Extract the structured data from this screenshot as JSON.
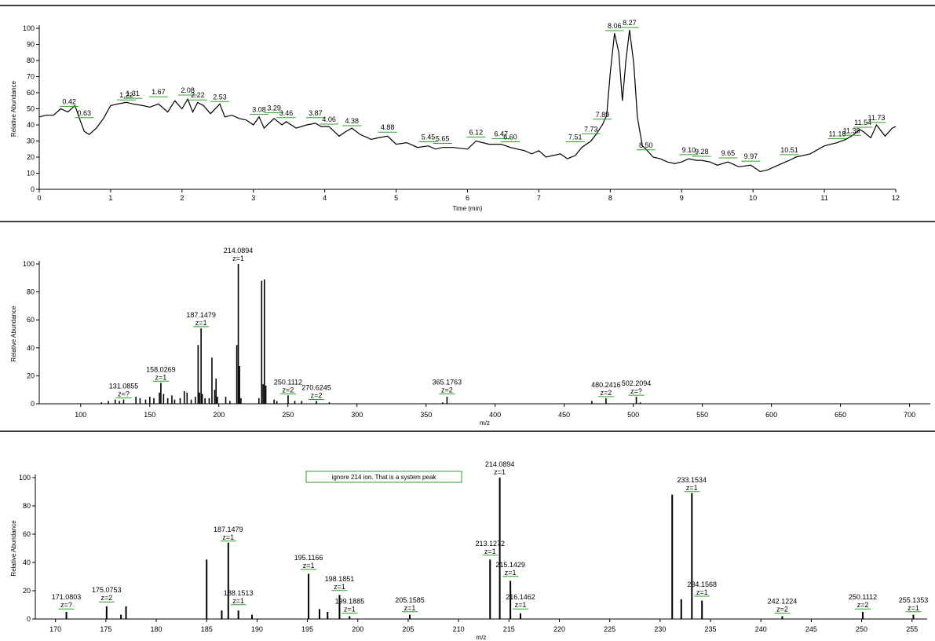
{
  "chart_data": [
    {
      "type": "line",
      "ylabel": "Relative Abundance",
      "xlabel": "Time (min)",
      "xlim": [
        0,
        12
      ],
      "ylim": [
        0,
        100
      ],
      "xticks": [
        0,
        1,
        2,
        3,
        4,
        5,
        6,
        7,
        8,
        9,
        10,
        11,
        12
      ],
      "yticks": [
        0,
        10,
        20,
        30,
        40,
        50,
        60,
        70,
        80,
        90,
        100
      ],
      "trace": [
        [
          0,
          45
        ],
        [
          0.1,
          46
        ],
        [
          0.2,
          46
        ],
        [
          0.3,
          50
        ],
        [
          0.4,
          48
        ],
        [
          0.5,
          52
        ],
        [
          0.58,
          42
        ],
        [
          0.63,
          36
        ],
        [
          0.7,
          34
        ],
        [
          0.8,
          38
        ],
        [
          0.9,
          44
        ],
        [
          1.0,
          52
        ],
        [
          1.1,
          53
        ],
        [
          1.22,
          54
        ],
        [
          1.31,
          53
        ],
        [
          1.45,
          52
        ],
        [
          1.55,
          51
        ],
        [
          1.67,
          53
        ],
        [
          1.8,
          48
        ],
        [
          1.9,
          55
        ],
        [
          2.0,
          50
        ],
        [
          2.08,
          56
        ],
        [
          2.15,
          48
        ],
        [
          2.22,
          54
        ],
        [
          2.3,
          52
        ],
        [
          2.4,
          47
        ],
        [
          2.53,
          53
        ],
        [
          2.6,
          45
        ],
        [
          2.7,
          46
        ],
        [
          2.8,
          44
        ],
        [
          2.9,
          43
        ],
        [
          3.0,
          40
        ],
        [
          3.08,
          45
        ],
        [
          3.15,
          38
        ],
        [
          3.29,
          44
        ],
        [
          3.4,
          40
        ],
        [
          3.46,
          42
        ],
        [
          3.6,
          38
        ],
        [
          3.75,
          40
        ],
        [
          3.87,
          41
        ],
        [
          3.95,
          39
        ],
        [
          4.06,
          39
        ],
        [
          4.2,
          33
        ],
        [
          4.3,
          36
        ],
        [
          4.38,
          38
        ],
        [
          4.5,
          34
        ],
        [
          4.65,
          31
        ],
        [
          4.75,
          32
        ],
        [
          4.88,
          33
        ],
        [
          5.0,
          28
        ],
        [
          5.15,
          29
        ],
        [
          5.3,
          26
        ],
        [
          5.45,
          27
        ],
        [
          5.55,
          25
        ],
        [
          5.65,
          26
        ],
        [
          5.8,
          26
        ],
        [
          6.0,
          25
        ],
        [
          6.12,
          30
        ],
        [
          6.3,
          28
        ],
        [
          6.47,
          28
        ],
        [
          6.6,
          26
        ],
        [
          6.8,
          24
        ],
        [
          6.9,
          22
        ],
        [
          7.0,
          24
        ],
        [
          7.1,
          20
        ],
        [
          7.3,
          22
        ],
        [
          7.4,
          19
        ],
        [
          7.51,
          21
        ],
        [
          7.6,
          26
        ],
        [
          7.73,
          30
        ],
        [
          7.8,
          34
        ],
        [
          7.89,
          40
        ],
        [
          7.95,
          46
        ],
        [
          8.0,
          72
        ],
        [
          8.06,
          97
        ],
        [
          8.12,
          85
        ],
        [
          8.17,
          55
        ],
        [
          8.22,
          80
        ],
        [
          8.27,
          99
        ],
        [
          8.33,
          78
        ],
        [
          8.38,
          45
        ],
        [
          8.45,
          27
        ],
        [
          8.5,
          25
        ],
        [
          8.6,
          20
        ],
        [
          8.7,
          19
        ],
        [
          8.8,
          17
        ],
        [
          8.9,
          16
        ],
        [
          9.0,
          17
        ],
        [
          9.1,
          19
        ],
        [
          9.2,
          18
        ],
        [
          9.28,
          18
        ],
        [
          9.4,
          17
        ],
        [
          9.5,
          15
        ],
        [
          9.65,
          17
        ],
        [
          9.8,
          14
        ],
        [
          9.97,
          15
        ],
        [
          10.1,
          11
        ],
        [
          10.2,
          12
        ],
        [
          10.35,
          15
        ],
        [
          10.51,
          18
        ],
        [
          10.6,
          20
        ],
        [
          10.8,
          22
        ],
        [
          11.0,
          27
        ],
        [
          11.18,
          29
        ],
        [
          11.3,
          31
        ],
        [
          11.38,
          33
        ],
        [
          11.5,
          37
        ],
        [
          11.54,
          36
        ],
        [
          11.65,
          32
        ],
        [
          11.73,
          40
        ],
        [
          11.85,
          33
        ],
        [
          11.95,
          38
        ],
        [
          12.0,
          39
        ]
      ],
      "labels": [
        {
          "text": "0.42",
          "x": 0.42,
          "y": 52
        },
        {
          "text": "0.63",
          "x": 0.63,
          "y": 45
        },
        {
          "text": "1.22",
          "x": 1.22,
          "y": 56
        },
        {
          "text": "1.31",
          "x": 1.31,
          "y": 57
        },
        {
          "text": "1.67",
          "x": 1.67,
          "y": 58
        },
        {
          "text": "2.08",
          "x": 2.08,
          "y": 59
        },
        {
          "text": "2.22",
          "x": 2.22,
          "y": 56
        },
        {
          "text": "2.53",
          "x": 2.53,
          "y": 55
        },
        {
          "text": "3.08",
          "x": 3.08,
          "y": 47
        },
        {
          "text": "3.29",
          "x": 3.29,
          "y": 48
        },
        {
          "text": "3.46",
          "x": 3.46,
          "y": 45
        },
        {
          "text": "3.87",
          "x": 3.87,
          "y": 45
        },
        {
          "text": "4.06",
          "x": 4.06,
          "y": 41
        },
        {
          "text": "4.38",
          "x": 4.38,
          "y": 40
        },
        {
          "text": "4.88",
          "x": 4.88,
          "y": 36
        },
        {
          "text": "5.45",
          "x": 5.45,
          "y": 30
        },
        {
          "text": "5.65",
          "x": 5.65,
          "y": 29
        },
        {
          "text": "6.12",
          "x": 6.12,
          "y": 33
        },
        {
          "text": "6.47",
          "x": 6.47,
          "y": 32
        },
        {
          "text": "6.60",
          "x": 6.6,
          "y": 30
        },
        {
          "text": "7.51",
          "x": 7.51,
          "y": 30
        },
        {
          "text": "7.73",
          "x": 7.73,
          "y": 35
        },
        {
          "text": "7.89",
          "x": 7.89,
          "y": 44
        },
        {
          "text": "8.06",
          "x": 8.06,
          "y": 99
        },
        {
          "text": "8.27",
          "x": 8.27,
          "y": 101
        },
        {
          "text": "8.50",
          "x": 8.5,
          "y": 25
        },
        {
          "text": "9.10",
          "x": 9.1,
          "y": 22
        },
        {
          "text": "9.28",
          "x": 9.28,
          "y": 21
        },
        {
          "text": "9.65",
          "x": 9.65,
          "y": 20
        },
        {
          "text": "9.97",
          "x": 9.97,
          "y": 18
        },
        {
          "text": "10.51",
          "x": 10.51,
          "y": 22
        },
        {
          "text": "11.18",
          "x": 11.18,
          "y": 32
        },
        {
          "text": "11.38",
          "x": 11.38,
          "y": 34
        },
        {
          "text": "11.54",
          "x": 11.54,
          "y": 39
        },
        {
          "text": "11.73",
          "x": 11.73,
          "y": 42
        }
      ]
    },
    {
      "type": "bar",
      "ylabel": "Relative Abundance",
      "xlabel": "m/z",
      "xlim": [
        70,
        715
      ],
      "ylim": [
        0,
        100
      ],
      "xticks": [
        100,
        150,
        200,
        250,
        300,
        350,
        400,
        450,
        500,
        550,
        600,
        650,
        700
      ],
      "yticks": [
        0,
        20,
        40,
        60,
        80,
        100
      ],
      "peaks": [
        [
          115,
          1
        ],
        [
          120,
          2
        ],
        [
          125,
          3
        ],
        [
          128,
          2
        ],
        [
          131.0855,
          3
        ],
        [
          140,
          5
        ],
        [
          143,
          4
        ],
        [
          147,
          3
        ],
        [
          150,
          5
        ],
        [
          153,
          4
        ],
        [
          157,
          8
        ],
        [
          158.0269,
          15
        ],
        [
          160,
          7
        ],
        [
          163,
          4
        ],
        [
          166,
          6
        ],
        [
          168,
          3
        ],
        [
          172,
          4
        ],
        [
          175,
          9
        ],
        [
          177,
          8
        ],
        [
          180,
          3
        ],
        [
          183,
          5
        ],
        [
          185,
          42
        ],
        [
          186,
          8
        ],
        [
          187.1479,
          54
        ],
        [
          188,
          7
        ],
        [
          190,
          4
        ],
        [
          193,
          4
        ],
        [
          195,
          33
        ],
        [
          197,
          10
        ],
        [
          198,
          18
        ],
        [
          199,
          5
        ],
        [
          205,
          5
        ],
        [
          208,
          2
        ],
        [
          213,
          42
        ],
        [
          214.0894,
          100
        ],
        [
          215,
          27
        ],
        [
          216,
          4
        ],
        [
          229,
          4
        ],
        [
          231,
          88
        ],
        [
          232,
          14
        ],
        [
          233,
          89
        ],
        [
          234,
          13
        ],
        [
          240,
          3
        ],
        [
          242,
          2
        ],
        [
          250.1112,
          6
        ],
        [
          255,
          2
        ],
        [
          260,
          2
        ],
        [
          270.6245,
          2
        ],
        [
          280,
          1
        ],
        [
          365.1763,
          5
        ],
        [
          362,
          1
        ],
        [
          470,
          2
        ],
        [
          480.2416,
          4
        ],
        [
          502.2094,
          5
        ],
        [
          505,
          1
        ]
      ],
      "labels": [
        {
          "lines": [
            "214.0894",
            "z=1"
          ],
          "x": 214.0894,
          "y": 100
        },
        {
          "lines": [
            "187.1479",
            "z=1"
          ],
          "x": 187.1479,
          "y": 54
        },
        {
          "lines": [
            "158.0269",
            "z=1"
          ],
          "x": 158.0269,
          "y": 15
        },
        {
          "lines": [
            "131.0855",
            "z=?"
          ],
          "x": 131.0855,
          "y": 3
        },
        {
          "lines": [
            "250.1112",
            "z=2"
          ],
          "x": 250.1112,
          "y": 6
        },
        {
          "lines": [
            "270.6245",
            "z=2"
          ],
          "x": 270.6245,
          "y": 2
        },
        {
          "lines": [
            "365.1763",
            "z=2"
          ],
          "x": 365.1763,
          "y": 6
        },
        {
          "lines": [
            "480.2416",
            "z=2"
          ],
          "x": 480.2416,
          "y": 4
        },
        {
          "lines": [
            "502.2094",
            "z=?"
          ],
          "x": 502.2094,
          "y": 5
        }
      ]
    },
    {
      "type": "bar",
      "ylabel": "Relative Abundance",
      "xlabel": "m/z",
      "xlim": [
        168,
        256.5
      ],
      "ylim": [
        0,
        100
      ],
      "xticks": [
        170,
        175,
        180,
        185,
        190,
        195,
        200,
        205,
        210,
        215,
        220,
        225,
        230,
        235,
        240,
        245,
        250,
        255
      ],
      "yticks": [
        0,
        20,
        40,
        60,
        80,
        100
      ],
      "annotation": "ignore 214 ion. That is a system peak",
      "peaks": [
        [
          171.0803,
          5
        ],
        [
          175.0753,
          9
        ],
        [
          176.5,
          3
        ],
        [
          177,
          9
        ],
        [
          185,
          42
        ],
        [
          186.5,
          6
        ],
        [
          187.1479,
          54
        ],
        [
          188.1513,
          6
        ],
        [
          189.5,
          3
        ],
        [
          195.1166,
          32
        ],
        [
          196.2,
          7
        ],
        [
          197,
          5
        ],
        [
          198.1851,
          17
        ],
        [
          199.1885,
          2
        ],
        [
          205.1585,
          3
        ],
        [
          213.1272,
          42
        ],
        [
          214.0894,
          100
        ],
        [
          215.1429,
          27
        ],
        [
          216.1462,
          4
        ],
        [
          231.2,
          88
        ],
        [
          232.1,
          14
        ],
        [
          233.1534,
          89
        ],
        [
          234.1568,
          13
        ],
        [
          242.1224,
          2
        ],
        [
          250.1112,
          5
        ],
        [
          255.1353,
          3
        ]
      ],
      "labels": [
        {
          "lines": [
            "214.0894",
            "z=1"
          ],
          "x": 214.0894,
          "y": 100
        },
        {
          "lines": [
            "233.1534",
            "z=1"
          ],
          "x": 233.1534,
          "y": 89
        },
        {
          "lines": [
            "187.1479",
            "z=1"
          ],
          "x": 187.1479,
          "y": 54
        },
        {
          "lines": [
            "213.1272",
            "z=1"
          ],
          "x": 213.1272,
          "y": 44
        },
        {
          "lines": [
            "195.1166",
            "z=1"
          ],
          "x": 195.1166,
          "y": 34
        },
        {
          "lines": [
            "215.1429",
            "z=1"
          ],
          "x": 215.1429,
          "y": 29
        },
        {
          "lines": [
            "198.1851",
            "z=1"
          ],
          "x": 198.1851,
          "y": 19
        },
        {
          "lines": [
            "188.1513",
            "z=1"
          ],
          "x": 188.1513,
          "y": 9
        },
        {
          "lines": [
            "234.1568",
            "z=1"
          ],
          "x": 234.1568,
          "y": 15
        },
        {
          "lines": [
            "216.1462",
            "z=1"
          ],
          "x": 216.1462,
          "y": 6
        },
        {
          "lines": [
            "175.0753",
            "z=2"
          ],
          "x": 175.0753,
          "y": 11
        },
        {
          "lines": [
            "171.0803",
            "z=?"
          ],
          "x": 171.0803,
          "y": 6
        },
        {
          "lines": [
            "199.1885",
            "z=1"
          ],
          "x": 199.1885,
          "y": 3
        },
        {
          "lines": [
            "205.1585",
            "z=1"
          ],
          "x": 205.1585,
          "y": 4
        },
        {
          "lines": [
            "242.1224",
            "z=2"
          ],
          "x": 242.1224,
          "y": 3
        },
        {
          "lines": [
            "250.1112",
            "z=2"
          ],
          "x": 250.1112,
          "y": 6
        },
        {
          "lines": [
            "255.1353",
            "z=1"
          ],
          "x": 255.1353,
          "y": 4
        }
      ]
    }
  ]
}
